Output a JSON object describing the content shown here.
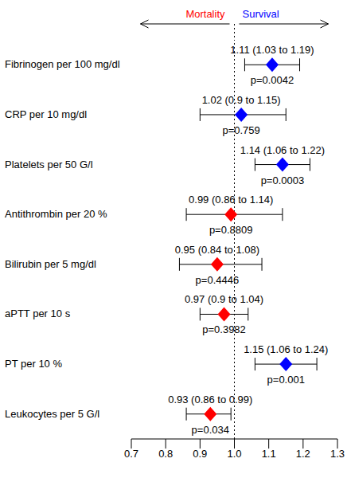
{
  "chart_data": {
    "type": "scatter",
    "marker": "diamond",
    "orientation": "horizontal",
    "categories": [
      "Fibrinogen per 100 mg/dl",
      "CRP per 10 mg/dl",
      "Platelets per 50 G/l",
      "Antithrombin per 20 %",
      "Bilirubin per 5 mg/dl",
      "aPTT per 10 s",
      "PT per 10 %",
      "Leukocytes per 5 G/l"
    ],
    "values": [
      1.11,
      1.02,
      1.14,
      0.99,
      0.95,
      0.97,
      1.15,
      0.93
    ],
    "value_labels": [
      "1.11 (1.03 to 1.19)",
      "1.02 (0.9 to 1.15)",
      "1.14 (1.06 to 1.22)",
      "0.99 (0.86 to 1.14)",
      "0.95 (0.84 to 1.08)",
      "0.97 (0.9 to 1.04)",
      "1.15 (1.06 to 1.24)",
      "0.93 (0.86 to 0.99)"
    ],
    "lower": [
      1.03,
      0.9,
      1.06,
      0.86,
      0.84,
      0.9,
      1.06,
      0.86
    ],
    "upper": [
      1.19,
      1.15,
      1.22,
      1.14,
      1.08,
      1.04,
      1.24,
      0.99
    ],
    "p_labels": [
      "p=0.0042",
      "p=0.759",
      "p=0.0003",
      "p=0.8809",
      "p=0.4446",
      "p=0.3982",
      "p=0.001",
      "p=0.034"
    ],
    "colors": [
      "#0000ff",
      "#0000ff",
      "#0000ff",
      "#ff0000",
      "#ff0000",
      "#ff0000",
      "#0000ff",
      "#ff0000"
    ],
    "xlim": [
      0.7,
      1.3
    ],
    "xticks": [
      0.7,
      0.8,
      0.9,
      {
        "value": 1,
        "label": "1.0"
      },
      1.1,
      1.2,
      1.3
    ],
    "reference_line": {
      "value": 1,
      "line_style": "dotted"
    },
    "annotations": [
      {
        "text": "Mortality",
        "color": "#ff0000"
      },
      {
        "text": "Survival",
        "color": "#0000ff"
      }
    ]
  }
}
